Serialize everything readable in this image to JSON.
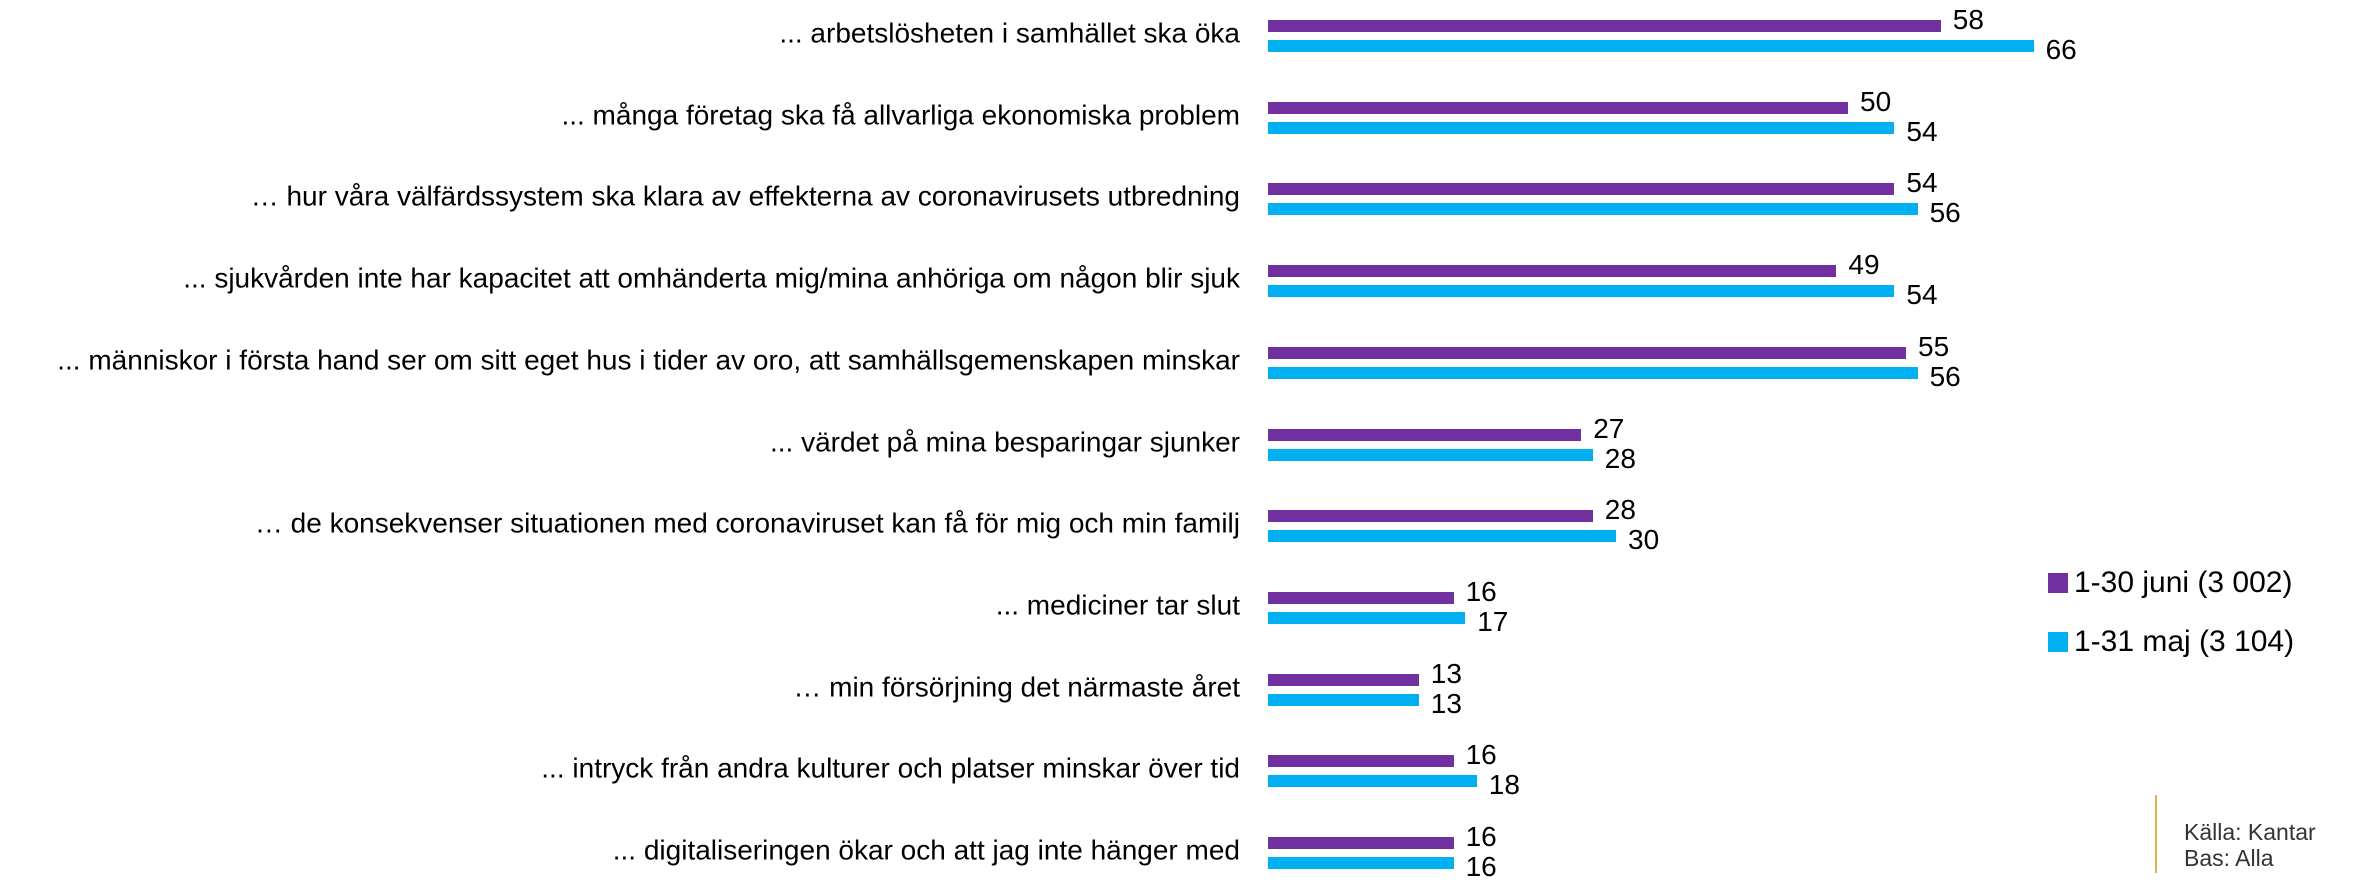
{
  "chart_data": {
    "type": "bar",
    "orientation": "horizontal",
    "categories": [
      "... arbetslösheten i samhället ska öka",
      "... många företag ska få allvarliga ekonomiska problem",
      "… hur våra välfärdssystem ska klara av effekterna av coronavirusets utbredning",
      "... sjukvården inte har kapacitet att omhänderta mig/mina anhöriga om någon blir sjuk",
      "... människor i första hand ser om sitt eget hus i tider av oro, att samhällsgemenskapen minskar",
      "... värdet på mina besparingar sjunker",
      "… de konsekvenser situationen med coronaviruset kan få för mig och min familj",
      "... mediciner tar slut",
      "… min försörjning det närmaste året",
      "... intryck från andra kulturer och platser minskar över tid",
      "... digitaliseringen ökar och att jag inte hänger med"
    ],
    "series": [
      {
        "name": "1-30 juni (3 002)",
        "color": "#7030a0",
        "values": [
          58,
          50,
          54,
          49,
          55,
          27,
          28,
          16,
          13,
          16,
          16
        ]
      },
      {
        "name": "1-31 maj (3 104)",
        "color": "#00b0f0",
        "values": [
          66,
          54,
          56,
          54,
          56,
          28,
          30,
          17,
          13,
          18,
          16
        ]
      }
    ],
    "legend": "right",
    "source": [
      "Källa: Kantar",
      "Bas: Alla"
    ]
  }
}
